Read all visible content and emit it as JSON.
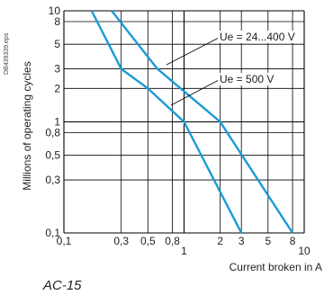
{
  "chart_data": {
    "type": "line",
    "reference_id": "DB439339.eps",
    "xlabel": "Current broken in A",
    "ylabel": "Millions of operating cycles",
    "caption": "AC-15",
    "x_scale": "log",
    "y_scale": "log",
    "xlim": [
      0.1,
      10
    ],
    "ylim": [
      0.1,
      10
    ],
    "grid": true,
    "x_ticks": [
      {
        "value": 0.1,
        "label": "0,1",
        "row": "upper"
      },
      {
        "value": 0.3,
        "label": "0,3",
        "row": "upper"
      },
      {
        "value": 0.5,
        "label": "0,5",
        "row": "upper"
      },
      {
        "value": 0.8,
        "label": "0,8",
        "row": "upper"
      },
      {
        "value": 1,
        "label": "1",
        "row": "lower"
      },
      {
        "value": 2,
        "label": "2",
        "row": "upper"
      },
      {
        "value": 3,
        "label": "3",
        "row": "upper"
      },
      {
        "value": 5,
        "label": "5",
        "row": "upper"
      },
      {
        "value": 8,
        "label": "8",
        "row": "upper"
      },
      {
        "value": 10,
        "label": "10",
        "row": "lower"
      }
    ],
    "y_ticks": [
      {
        "value": 0.1,
        "label": "0,1"
      },
      {
        "value": 0.3,
        "label": "0,3"
      },
      {
        "value": 0.5,
        "label": "0,5"
      },
      {
        "value": 0.8,
        "label": "0,8"
      },
      {
        "value": 1,
        "label": "1"
      },
      {
        "value": 2,
        "label": "2"
      },
      {
        "value": 3,
        "label": "3"
      },
      {
        "value": 5,
        "label": "5"
      },
      {
        "value": 8,
        "label": "8"
      },
      {
        "value": 10,
        "label": "10"
      }
    ],
    "series": [
      {
        "name": "Ue = 24...400 V",
        "color": "#1a9ad6",
        "points": [
          [
            0.25,
            10
          ],
          [
            0.6,
            3
          ],
          [
            2,
            1
          ],
          [
            8,
            0.1
          ]
        ]
      },
      {
        "name": "Ue = 500 V",
        "color": "#1a9ad6",
        "points": [
          [
            0.17,
            10
          ],
          [
            0.3,
            3
          ],
          [
            0.5,
            2
          ],
          [
            1,
            1
          ],
          [
            3,
            0.1
          ]
        ]
      }
    ]
  }
}
